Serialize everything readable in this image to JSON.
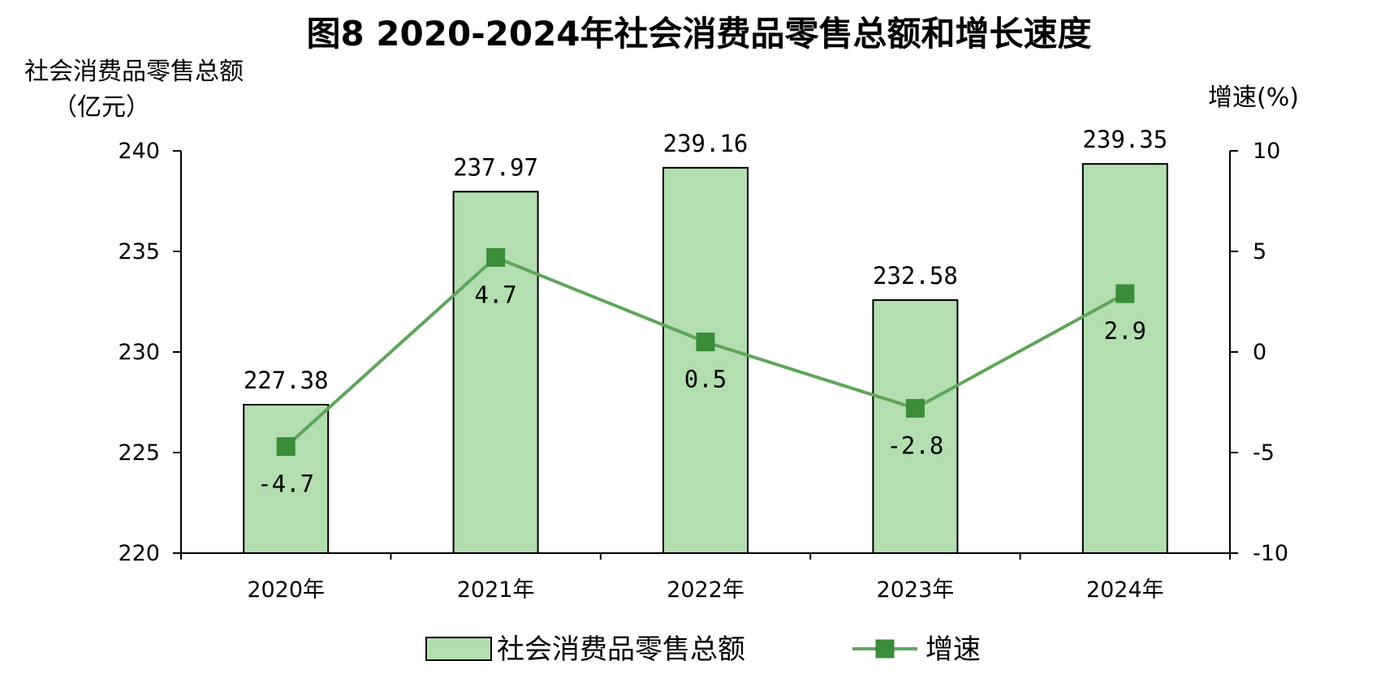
{
  "chart_data": {
    "type": "bar",
    "title": "图8 2020-2024年社会消费品零售总额和增长速度",
    "categories": [
      "2020年",
      "2021年",
      "2022年",
      "2023年",
      "2024年"
    ],
    "y_left": {
      "label_line1": "社会消费品零售总额",
      "label_line2": "（亿元）",
      "ylim": [
        220,
        240
      ],
      "ticks": [
        "220",
        "225",
        "230",
        "235",
        "240"
      ]
    },
    "y_right": {
      "label": "增速(%)",
      "ylim": [
        -10,
        10
      ],
      "ticks": [
        "-10",
        "-5",
        "0",
        "5",
        "10"
      ]
    },
    "series": [
      {
        "name": "社会消费品零售总额",
        "type": "bar",
        "axis": "left",
        "values": [
          227.38,
          237.97,
          239.16,
          232.58,
          239.35
        ],
        "labels": [
          "227.38",
          "237.97",
          "239.16",
          "232.58",
          "239.35"
        ]
      },
      {
        "name": "增速",
        "type": "line",
        "axis": "right",
        "values": [
          -4.7,
          4.7,
          0.5,
          -2.8,
          2.9
        ],
        "labels": [
          "-4.7",
          "4.7",
          "0.5",
          "-2.8",
          "2.9"
        ]
      }
    ],
    "colors": {
      "bar_fill": "#b3deb0",
      "bar_stroke": "#000000",
      "line": "#5fa55a",
      "marker": "#3a8c3a"
    },
    "legend": {
      "position": "bottom",
      "bar_label": "社会消费品零售总额",
      "line_label": "增速"
    },
    "grid": false
  }
}
